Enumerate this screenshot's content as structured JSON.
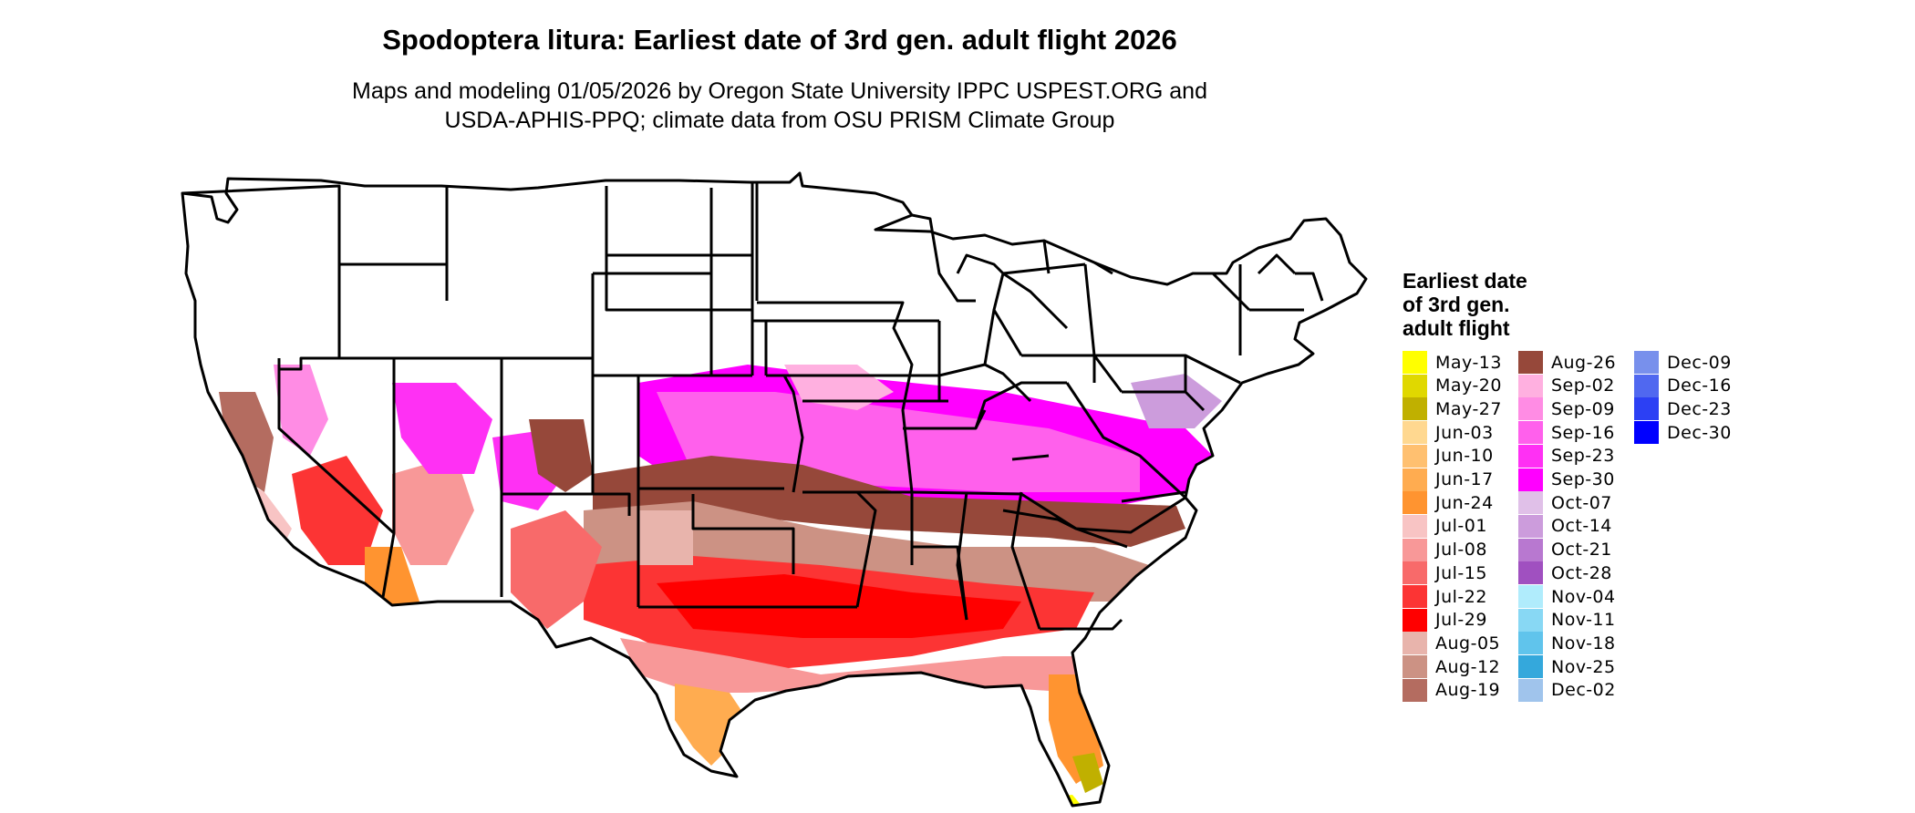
{
  "title": "Spodoptera litura: Earliest date of 3rd gen. adult flight 2026",
  "subtitle_lines": [
    "Maps and modeling 01/05/2026 by Oregon State University IPPC USPEST.ORG and",
    "USDA-APHIS-PPQ; climate data from OSU PRISM Climate Group"
  ],
  "legend": {
    "title_lines": [
      "Earliest date",
      "of 3rd gen.",
      "adult flight"
    ],
    "items": [
      {
        "label": "May-13",
        "color": "#ffff00"
      },
      {
        "label": "May-20",
        "color": "#e0d800"
      },
      {
        "label": "May-27",
        "color": "#c0b000"
      },
      {
        "label": "Jun-03",
        "color": "#ffd890"
      },
      {
        "label": "Jun-10",
        "color": "#ffc070"
      },
      {
        "label": "Jun-17",
        "color": "#ffac50"
      },
      {
        "label": "Jun-24",
        "color": "#ff9430"
      },
      {
        "label": "Jul-01",
        "color": "#f8c4c4"
      },
      {
        "label": "Jul-08",
        "color": "#f89898"
      },
      {
        "label": "Jul-15",
        "color": "#f86a6a"
      },
      {
        "label": "Jul-22",
        "color": "#fc3434"
      },
      {
        "label": "Jul-29",
        "color": "#ff0000"
      },
      {
        "label": "Aug-05",
        "color": "#e8b4ac"
      },
      {
        "label": "Aug-12",
        "color": "#cc9284"
      },
      {
        "label": "Aug-19",
        "color": "#b46c60"
      },
      {
        "label": "Aug-26",
        "color": "#96483a"
      },
      {
        "label": "Sep-02",
        "color": "#ffb0e0"
      },
      {
        "label": "Sep-09",
        "color": "#ff8ce4"
      },
      {
        "label": "Sep-16",
        "color": "#ff60ec"
      },
      {
        "label": "Sep-23",
        "color": "#ff30f4"
      },
      {
        "label": "Sep-30",
        "color": "#ff00ff"
      },
      {
        "label": "Oct-07",
        "color": "#e0c0e8"
      },
      {
        "label": "Oct-14",
        "color": "#cc9cdc"
      },
      {
        "label": "Oct-21",
        "color": "#b878d0"
      },
      {
        "label": "Oct-28",
        "color": "#a050c0"
      },
      {
        "label": "Nov-04",
        "color": "#b0ecfc"
      },
      {
        "label": "Nov-11",
        "color": "#88d8f4"
      },
      {
        "label": "Nov-18",
        "color": "#60c4ec"
      },
      {
        "label": "Nov-25",
        "color": "#34a8dc"
      },
      {
        "label": "Dec-02",
        "color": "#a0c4ec"
      },
      {
        "label": "Dec-09",
        "color": "#7890ec"
      },
      {
        "label": "Dec-16",
        "color": "#5068f0"
      },
      {
        "label": "Dec-23",
        "color": "#2c40f4"
      },
      {
        "label": "Dec-30",
        "color": "#0000ff"
      }
    ]
  }
}
